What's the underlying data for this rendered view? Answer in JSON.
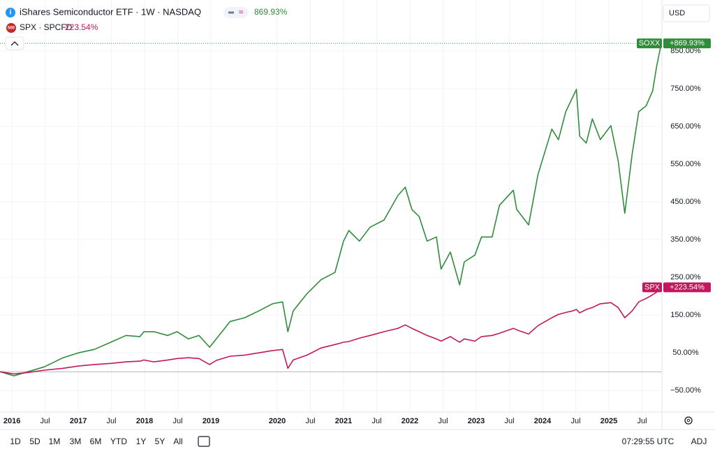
{
  "chart_data": {
    "type": "line",
    "x": [
      2015.82,
      2016.03,
      2016.24,
      2016.49,
      2016.77,
      2017.0,
      2017.24,
      2017.49,
      2017.72,
      2017.93,
      2017.99,
      2018.14,
      2018.35,
      2018.49,
      2018.66,
      2018.82,
      2018.98,
      2019.08,
      2019.29,
      2019.51,
      2019.72,
      2019.93,
      2020.08,
      2020.16,
      2020.24,
      2020.45,
      2020.66,
      2020.87,
      2021.0,
      2021.08,
      2021.24,
      2021.4,
      2021.61,
      2021.82,
      2021.93,
      2022.03,
      2022.14,
      2022.26,
      2022.4,
      2022.47,
      2022.61,
      2022.75,
      2022.82,
      2022.98,
      2023.08,
      2023.24,
      2023.35,
      2023.56,
      2023.61,
      2023.79,
      2023.93,
      2024.14,
      2024.24,
      2024.35,
      2024.45,
      2024.51,
      2024.56,
      2024.66,
      2024.75,
      2024.87,
      2025.03,
      2025.14,
      2025.24,
      2025.35,
      2025.45,
      2025.56,
      2025.66,
      2025.72,
      2025.79
    ],
    "series": [
      {
        "name": "iShares Semiconductor ETF · 1W · NASDAQ",
        "tag": "SOXX",
        "legend_value": "869.93%",
        "end_label": "+869.93%",
        "color": "#2f8c3a",
        "values": [
          0,
          -11,
          0,
          13,
          37,
          50,
          59,
          78,
          96,
          93,
          106,
          106,
          96,
          106,
          87,
          96,
          65,
          87,
          133,
          143,
          161,
          180,
          185,
          106,
          161,
          207,
          244,
          263,
          346,
          374,
          346,
          383,
          402,
          467,
          489,
          430,
          411,
          346,
          357,
          272,
          317,
          230,
          291,
          309,
          357,
          357,
          441,
          481,
          430,
          389,
          522,
          643,
          615,
          689,
          726,
          748,
          624,
          606,
          670,
          615,
          652,
          559,
          420,
          576,
          689,
          704,
          744,
          809,
          869.93
        ]
      },
      {
        "name": "SPX · SPCFD",
        "tag": "SPX",
        "badge": "500",
        "legend_value": "223.54%",
        "end_label": "+223.54%",
        "color": "#c2185b",
        "values": [
          0,
          -6,
          -2,
          4,
          9,
          15,
          19,
          22,
          26,
          28,
          31,
          26,
          31,
          35,
          37,
          35,
          19,
          30,
          41,
          44,
          50,
          56,
          59,
          9,
          31,
          44,
          63,
          72,
          78,
          80,
          89,
          96,
          106,
          115,
          124,
          115,
          106,
          96,
          87,
          81,
          93,
          78,
          87,
          81,
          93,
          96,
          102,
          115,
          111,
          100,
          122,
          143,
          152,
          157,
          161,
          165,
          156,
          165,
          170,
          180,
          183,
          170,
          143,
          161,
          185,
          194,
          204,
          211,
          223.54
        ]
      }
    ],
    "xlim": [
      2015.82,
      2025.8
    ],
    "xticks": [
      {
        "value": 2016,
        "label": "2016"
      },
      {
        "value": 2016.5,
        "label": "Jul"
      },
      {
        "value": 2017,
        "label": "2017"
      },
      {
        "value": 2017.5,
        "label": "Jul"
      },
      {
        "value": 2018,
        "label": "2018"
      },
      {
        "value": 2018.5,
        "label": "Jul"
      },
      {
        "value": 2019,
        "label": "2019"
      },
      {
        "value": 2020,
        "label": "2020"
      },
      {
        "value": 2020.5,
        "label": "Jul"
      },
      {
        "value": 2021,
        "label": "2021"
      },
      {
        "value": 2021.5,
        "label": "Jul"
      },
      {
        "value": 2022,
        "label": "2022"
      },
      {
        "value": 2022.5,
        "label": "Jul"
      },
      {
        "value": 2023,
        "label": "2023"
      },
      {
        "value": 2023.5,
        "label": "Jul"
      },
      {
        "value": 2024,
        "label": "2024"
      },
      {
        "value": 2024.5,
        "label": "Jul"
      },
      {
        "value": 2025,
        "label": "2025"
      },
      {
        "value": 2025.5,
        "label": "Jul"
      }
    ],
    "ylim": [
      -107,
      985
    ],
    "yticks": [
      {
        "value": -50,
        "label": "−50.00%"
      },
      {
        "value": 50,
        "label": "50.00%"
      },
      {
        "value": 150,
        "label": "150.00%"
      },
      {
        "value": 250,
        "label": "250.00%"
      },
      {
        "value": 350,
        "label": "350.00%"
      },
      {
        "value": 450,
        "label": "450.00%"
      },
      {
        "value": 550,
        "label": "550.00%"
      },
      {
        "value": 650,
        "label": "650.00%"
      },
      {
        "value": 750,
        "label": "750.00%"
      },
      {
        "value": 850,
        "label": "850.00%"
      }
    ],
    "grid": true,
    "currency": "USD"
  },
  "toolbar": {
    "ranges": [
      "1D",
      "5D",
      "1M",
      "3M",
      "6M",
      "YTD",
      "1Y",
      "5Y",
      "All"
    ],
    "time": "07:29:55 UTC",
    "adj": "ADJ"
  }
}
